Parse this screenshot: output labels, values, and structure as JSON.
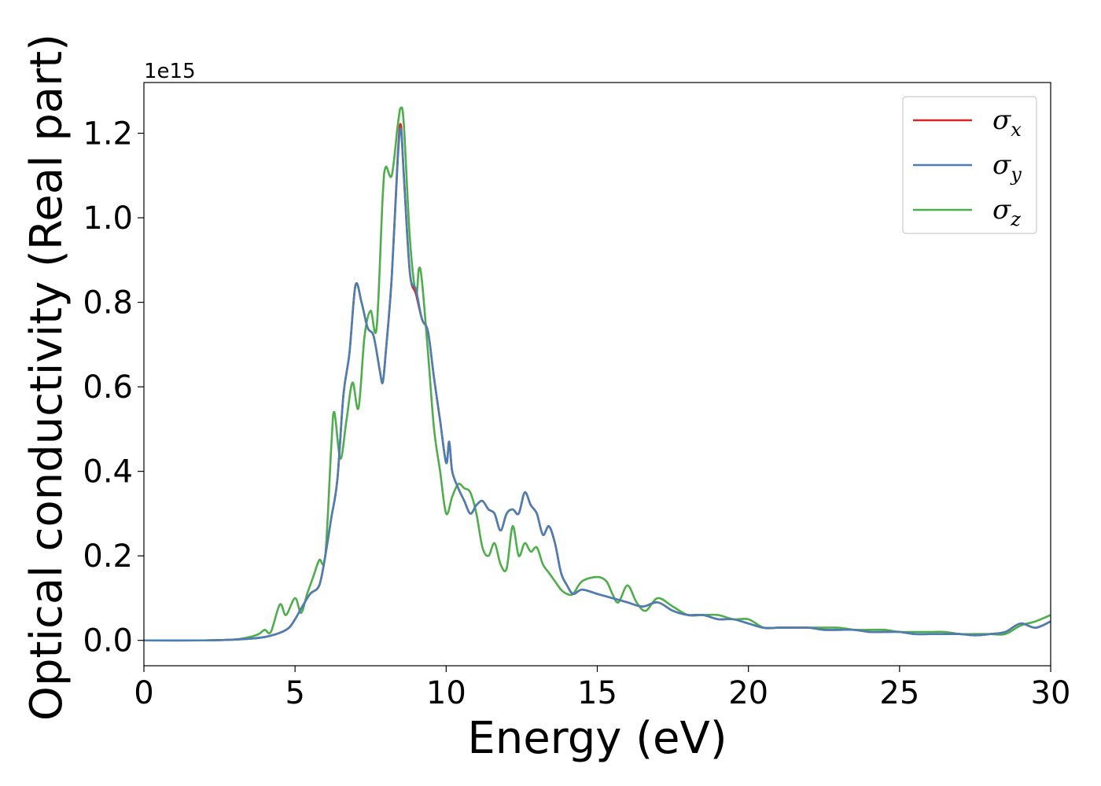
{
  "chart_data": {
    "type": "line",
    "title": "",
    "xlabel": "Energy (eV)",
    "ylabel": "Optical conductivity (Real part)",
    "y_offset_text": "1e15",
    "y_scale": 1000000000000000.0,
    "xlim": [
      0,
      30
    ],
    "ylim": [
      -0.06,
      1.32
    ],
    "x_ticks": [
      0,
      5,
      10,
      15,
      20,
      25,
      30
    ],
    "x_tick_labels": [
      "0",
      "5",
      "10",
      "15",
      "20",
      "25",
      "30"
    ],
    "y_ticks": [
      0.0,
      0.2,
      0.4,
      0.6,
      0.8,
      1.0,
      1.2
    ],
    "y_tick_labels": [
      "0.0",
      "0.2",
      "0.4",
      "0.6",
      "0.8",
      "1.0",
      "1.2"
    ],
    "grid": false,
    "legend_position": "top-right",
    "series": [
      {
        "name": "σ_x",
        "legend_base": "σ",
        "legend_sub": "x",
        "color": "#d62728",
        "x": [
          0,
          2,
          3,
          3.5,
          4,
          4.5,
          4.8,
          5.0,
          5.2,
          5.5,
          5.8,
          6.0,
          6.2,
          6.4,
          6.6,
          6.8,
          7.0,
          7.2,
          7.4,
          7.6,
          7.8,
          7.9,
          8.0,
          8.2,
          8.4,
          8.5,
          8.6,
          8.8,
          9.0,
          9.2,
          9.4,
          9.6,
          9.8,
          10.0,
          10.1,
          10.2,
          10.4,
          10.6,
          10.8,
          11.0,
          11.2,
          11.4,
          11.6,
          11.8,
          12.0,
          12.2,
          12.4,
          12.6,
          12.8,
          13.0,
          13.2,
          13.4,
          13.6,
          13.8,
          14.0,
          14.2,
          14.5,
          15.0,
          15.5,
          16.0,
          16.5,
          17.0,
          17.5,
          18.0,
          18.5,
          19.0,
          19.5,
          20.0,
          20.5,
          21.0,
          21.5,
          22.0,
          22.5,
          23.0,
          23.5,
          24.0,
          24.5,
          25.0,
          25.5,
          26.0,
          26.5,
          27.0,
          27.5,
          28.0,
          28.5,
          29.0,
          29.5,
          30.0
        ],
        "y": [
          0.0,
          0.0,
          0.002,
          0.004,
          0.008,
          0.018,
          0.03,
          0.05,
          0.075,
          0.11,
          0.13,
          0.2,
          0.29,
          0.38,
          0.58,
          0.68,
          0.84,
          0.8,
          0.74,
          0.72,
          0.64,
          0.61,
          0.68,
          0.86,
          1.15,
          1.22,
          1.1,
          0.87,
          0.82,
          0.76,
          0.73,
          0.62,
          0.52,
          0.42,
          0.47,
          0.4,
          0.36,
          0.33,
          0.3,
          0.32,
          0.33,
          0.31,
          0.3,
          0.26,
          0.3,
          0.31,
          0.3,
          0.35,
          0.32,
          0.3,
          0.25,
          0.27,
          0.23,
          0.16,
          0.13,
          0.11,
          0.12,
          0.11,
          0.1,
          0.09,
          0.08,
          0.09,
          0.07,
          0.06,
          0.06,
          0.05,
          0.05,
          0.04,
          0.03,
          0.03,
          0.03,
          0.03,
          0.025,
          0.025,
          0.025,
          0.02,
          0.02,
          0.02,
          0.015,
          0.015,
          0.015,
          0.015,
          0.012,
          0.015,
          0.02,
          0.04,
          0.03,
          0.045
        ]
      },
      {
        "name": "σ_y",
        "legend_base": "σ",
        "legend_sub": "y",
        "color": "#4a7fb5",
        "x": [
          0,
          2,
          3,
          3.5,
          4,
          4.5,
          4.8,
          5.0,
          5.2,
          5.5,
          5.8,
          6.0,
          6.2,
          6.4,
          6.6,
          6.8,
          7.0,
          7.2,
          7.4,
          7.6,
          7.8,
          7.9,
          8.0,
          8.2,
          8.4,
          8.5,
          8.6,
          8.8,
          9.0,
          9.2,
          9.4,
          9.6,
          9.8,
          10.0,
          10.1,
          10.2,
          10.4,
          10.6,
          10.8,
          11.0,
          11.2,
          11.4,
          11.6,
          11.8,
          12.0,
          12.2,
          12.4,
          12.6,
          12.8,
          13.0,
          13.2,
          13.4,
          13.6,
          13.8,
          14.0,
          14.2,
          14.5,
          15.0,
          15.5,
          16.0,
          16.5,
          17.0,
          17.5,
          18.0,
          18.5,
          19.0,
          19.5,
          20.0,
          20.5,
          21.0,
          21.5,
          22.0,
          22.5,
          23.0,
          23.5,
          24.0,
          24.5,
          25.0,
          25.5,
          26.0,
          26.5,
          27.0,
          27.5,
          28.0,
          28.5,
          29.0,
          29.5,
          30.0
        ],
        "y": [
          0.0,
          0.0,
          0.002,
          0.004,
          0.008,
          0.018,
          0.03,
          0.05,
          0.075,
          0.11,
          0.13,
          0.2,
          0.29,
          0.38,
          0.58,
          0.68,
          0.84,
          0.8,
          0.74,
          0.72,
          0.64,
          0.61,
          0.68,
          0.86,
          1.14,
          1.21,
          1.1,
          0.87,
          0.83,
          0.76,
          0.73,
          0.62,
          0.52,
          0.42,
          0.47,
          0.4,
          0.36,
          0.33,
          0.3,
          0.32,
          0.33,
          0.31,
          0.3,
          0.26,
          0.3,
          0.31,
          0.3,
          0.35,
          0.32,
          0.3,
          0.25,
          0.27,
          0.23,
          0.16,
          0.13,
          0.11,
          0.12,
          0.11,
          0.1,
          0.09,
          0.08,
          0.09,
          0.07,
          0.06,
          0.06,
          0.05,
          0.05,
          0.04,
          0.03,
          0.03,
          0.03,
          0.03,
          0.025,
          0.025,
          0.025,
          0.02,
          0.02,
          0.02,
          0.015,
          0.015,
          0.015,
          0.015,
          0.012,
          0.015,
          0.02,
          0.04,
          0.03,
          0.045
        ]
      },
      {
        "name": "σ_z",
        "legend_base": "σ",
        "legend_sub": "z",
        "color": "#4daf4a",
        "x": [
          0,
          2,
          3,
          3.5,
          3.8,
          4.0,
          4.2,
          4.5,
          4.7,
          5.0,
          5.2,
          5.4,
          5.6,
          5.8,
          6.0,
          6.2,
          6.3,
          6.5,
          6.7,
          6.9,
          7.1,
          7.3,
          7.5,
          7.7,
          7.9,
          8.0,
          8.2,
          8.4,
          8.5,
          8.6,
          8.8,
          9.0,
          9.1,
          9.2,
          9.4,
          9.6,
          9.8,
          10.0,
          10.2,
          10.4,
          10.6,
          10.8,
          11.0,
          11.2,
          11.4,
          11.6,
          11.8,
          12.0,
          12.2,
          12.4,
          12.6,
          12.8,
          13.0,
          13.2,
          13.4,
          13.6,
          13.8,
          14.0,
          14.2,
          14.5,
          15.0,
          15.3,
          15.5,
          15.7,
          16.0,
          16.3,
          16.6,
          17.0,
          17.5,
          18.0,
          18.5,
          19.0,
          19.5,
          20.0,
          20.5,
          21.0,
          21.5,
          22.0,
          22.5,
          23.0,
          23.5,
          24.0,
          24.5,
          25.0,
          25.5,
          26.0,
          26.5,
          27.0,
          27.5,
          28.0,
          28.5,
          29.0,
          29.5,
          30.0
        ],
        "y": [
          0.0,
          0.0,
          0.002,
          0.008,
          0.015,
          0.025,
          0.02,
          0.085,
          0.06,
          0.1,
          0.065,
          0.11,
          0.15,
          0.19,
          0.2,
          0.46,
          0.54,
          0.43,
          0.52,
          0.61,
          0.55,
          0.72,
          0.78,
          0.74,
          1.05,
          1.12,
          1.1,
          1.22,
          1.26,
          1.22,
          0.95,
          0.82,
          0.88,
          0.85,
          0.68,
          0.5,
          0.4,
          0.3,
          0.34,
          0.37,
          0.36,
          0.35,
          0.3,
          0.22,
          0.2,
          0.23,
          0.18,
          0.17,
          0.27,
          0.2,
          0.23,
          0.21,
          0.22,
          0.18,
          0.16,
          0.14,
          0.12,
          0.11,
          0.11,
          0.14,
          0.15,
          0.14,
          0.11,
          0.09,
          0.13,
          0.09,
          0.07,
          0.1,
          0.08,
          0.06,
          0.06,
          0.06,
          0.05,
          0.05,
          0.03,
          0.03,
          0.03,
          0.03,
          0.03,
          0.03,
          0.025,
          0.025,
          0.025,
          0.02,
          0.02,
          0.02,
          0.02,
          0.015,
          0.015,
          0.015,
          0.015,
          0.035,
          0.045,
          0.06
        ]
      }
    ]
  }
}
